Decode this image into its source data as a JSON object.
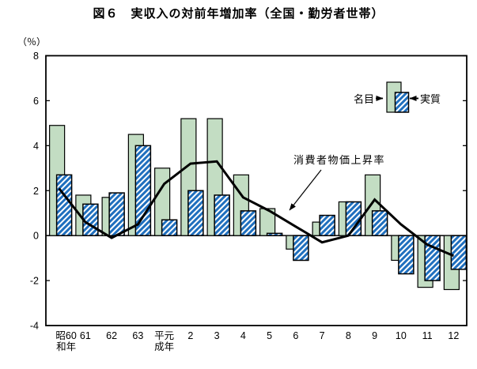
{
  "title": "図６　実収入の対前年増加率（全国・勤労者世帯）",
  "y_unit_label": "（％）",
  "legend": {
    "nominal_label": "名目",
    "real_label": "実質"
  },
  "line_annotation": "消費者物価上昇率",
  "colors": {
    "nominal_fill": "#c3ddc3",
    "hatch_blue": "#1f6fbe",
    "axis": "#000000",
    "line": "#000000"
  },
  "chart_data": {
    "type": "bar+line",
    "title": "図６　実収入の対前年増加率（全国・勤労者世帯）",
    "categories": [
      "昭和60年",
      "61",
      "62",
      "63",
      "平成元年",
      "2",
      "3",
      "4",
      "5",
      "6",
      "7",
      "8",
      "9",
      "10",
      "11",
      "12"
    ],
    "x_tick_display": [
      [
        "昭60",
        "和年"
      ],
      [
        "61"
      ],
      [
        "62"
      ],
      [
        "63"
      ],
      [
        "平元",
        "成年"
      ],
      [
        "2"
      ],
      [
        "3"
      ],
      [
        "4"
      ],
      [
        "5"
      ],
      [
        "6"
      ],
      [
        "7"
      ],
      [
        "8"
      ],
      [
        "9"
      ],
      [
        "10"
      ],
      [
        "11"
      ],
      [
        "12"
      ]
    ],
    "series": [
      {
        "name": "名目",
        "type": "bar",
        "style": "solid-green",
        "values": [
          4.9,
          1.8,
          1.7,
          4.5,
          3.0,
          5.2,
          5.2,
          2.7,
          1.2,
          -0.6,
          0.6,
          1.5,
          2.7,
          -1.1,
          -2.3,
          -2.4
        ]
      },
      {
        "name": "実質",
        "type": "bar",
        "style": "blue-hatched",
        "values": [
          2.7,
          1.4,
          1.9,
          4.0,
          0.7,
          2.0,
          1.8,
          1.1,
          0.1,
          -1.1,
          0.9,
          1.5,
          1.1,
          -1.7,
          -2.0,
          -1.5
        ]
      },
      {
        "name": "消費者物価上昇率",
        "type": "line",
        "values": [
          2.1,
          0.6,
          -0.1,
          0.5,
          2.3,
          3.2,
          3.3,
          1.7,
          1.1,
          0.4,
          -0.3,
          0.0,
          1.6,
          0.5,
          -0.4,
          -0.9
        ]
      }
    ],
    "ylabel": "（％）",
    "ylim": [
      -4,
      8
    ],
    "ytick_step": 2,
    "grid": false,
    "legend_position": "inside-top-right"
  }
}
